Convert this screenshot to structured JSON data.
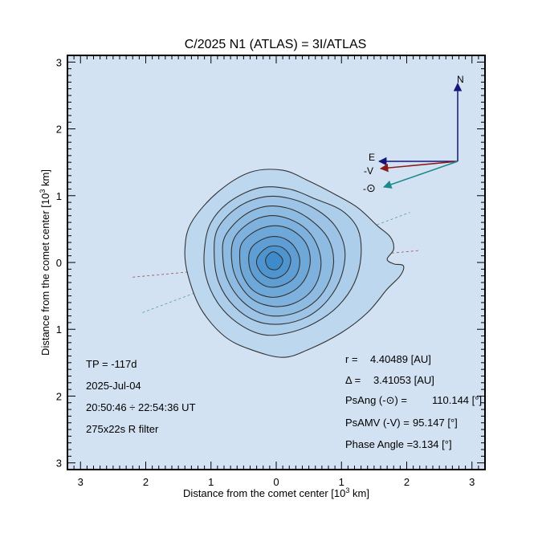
{
  "chart_data": {
    "type": "contour",
    "title": "C/2025 N1 (ATLAS) = 3I/ATLAS",
    "xlabel": "Distance from the comet center [10",
    "xlabel_sup": "3",
    "xlabel_end": " km]",
    "ylabel": "Distance from the comet center [10",
    "ylabel_sup": "3",
    "ylabel_end": " km]",
    "xlim": [
      -3.2,
      3.2
    ],
    "ylim": [
      -3.1,
      3.1
    ],
    "x_ticks": [
      {
        "value": -3,
        "label": "3"
      },
      {
        "value": -2,
        "label": "2"
      },
      {
        "value": -1,
        "label": "1"
      },
      {
        "value": 0,
        "label": "0"
      },
      {
        "value": 1,
        "label": "1"
      },
      {
        "value": 2,
        "label": "2"
      },
      {
        "value": 3,
        "label": "3"
      }
    ],
    "y_ticks": [
      {
        "value": 3,
        "label": "3"
      },
      {
        "value": 2,
        "label": "2"
      },
      {
        "value": 1,
        "label": "1"
      },
      {
        "value": 0,
        "label": "0"
      },
      {
        "value": -1,
        "label": "1"
      },
      {
        "value": -2,
        "label": "2"
      },
      {
        "value": -3,
        "label": "3"
      }
    ],
    "colors": {
      "plot_background": "#d3e2f2",
      "fill_light": "#bdd7ee",
      "fill_dark": "#3e8bcc",
      "contour_line": "#333333",
      "north_east_arrows": "#16167a",
      "velocity_arrow": "#8b1a1a",
      "sun_arrow": "#1b8a8a"
    },
    "contours": [
      {
        "level": 1,
        "points": [
          [
            -1.3,
            0.6
          ],
          [
            -0.9,
            1.05
          ],
          [
            -0.4,
            1.35
          ],
          [
            0.1,
            1.38
          ],
          [
            0.5,
            1.22
          ],
          [
            0.9,
            1.02
          ],
          [
            1.25,
            0.82
          ],
          [
            1.55,
            0.55
          ],
          [
            1.75,
            0.38
          ],
          [
            1.8,
            0.2
          ],
          [
            1.7,
            0.05
          ],
          [
            1.8,
            -0.02
          ],
          [
            1.95,
            -0.05
          ],
          [
            1.9,
            -0.2
          ],
          [
            1.7,
            -0.4
          ],
          [
            1.4,
            -0.75
          ],
          [
            1.0,
            -1.05
          ],
          [
            0.5,
            -1.3
          ],
          [
            0.1,
            -1.42
          ],
          [
            -0.4,
            -1.3
          ],
          [
            -0.8,
            -1.1
          ],
          [
            -1.15,
            -0.7
          ],
          [
            -1.35,
            -0.2
          ],
          [
            -1.4,
            0.2
          ]
        ]
      },
      {
        "level": 2,
        "points": [
          [
            -1.0,
            0.6
          ],
          [
            -0.7,
            0.92
          ],
          [
            -0.25,
            1.12
          ],
          [
            0.2,
            1.1
          ],
          [
            0.6,
            0.95
          ],
          [
            1.0,
            0.78
          ],
          [
            1.25,
            0.5
          ],
          [
            1.3,
            0.1
          ],
          [
            1.2,
            -0.3
          ],
          [
            0.95,
            -0.65
          ],
          [
            0.6,
            -0.9
          ],
          [
            0.2,
            -1.05
          ],
          [
            -0.2,
            -1.08
          ],
          [
            -0.6,
            -0.9
          ],
          [
            -0.9,
            -0.6
          ],
          [
            -1.08,
            -0.2
          ],
          [
            -1.1,
            0.2
          ]
        ]
      },
      {
        "level": 3,
        "points": [
          [
            -0.9,
            0.5
          ],
          [
            -0.6,
            0.82
          ],
          [
            -0.2,
            0.98
          ],
          [
            0.2,
            0.96
          ],
          [
            0.6,
            0.8
          ],
          [
            0.9,
            0.55
          ],
          [
            1.05,
            0.2
          ],
          [
            1.0,
            -0.2
          ],
          [
            0.8,
            -0.55
          ],
          [
            0.5,
            -0.8
          ],
          [
            0.1,
            -0.92
          ],
          [
            -0.3,
            -0.88
          ],
          [
            -0.65,
            -0.65
          ],
          [
            -0.88,
            -0.3
          ],
          [
            -0.95,
            0.1
          ]
        ]
      },
      {
        "level": 4,
        "points": [
          [
            -0.78,
            0.4
          ],
          [
            -0.5,
            0.7
          ],
          [
            -0.15,
            0.84
          ],
          [
            0.22,
            0.8
          ],
          [
            0.55,
            0.62
          ],
          [
            0.8,
            0.35
          ],
          [
            0.88,
            0.0
          ],
          [
            0.78,
            -0.35
          ],
          [
            0.55,
            -0.62
          ],
          [
            0.2,
            -0.78
          ],
          [
            -0.18,
            -0.78
          ],
          [
            -0.52,
            -0.58
          ],
          [
            -0.75,
            -0.25
          ],
          [
            -0.82,
            0.1
          ]
        ]
      },
      {
        "level": 5,
        "points": [
          [
            -0.65,
            0.35
          ],
          [
            -0.4,
            0.6
          ],
          [
            -0.1,
            0.7
          ],
          [
            0.2,
            0.65
          ],
          [
            0.48,
            0.48
          ],
          [
            0.65,
            0.2
          ],
          [
            0.68,
            -0.1
          ],
          [
            0.56,
            -0.4
          ],
          [
            0.3,
            -0.6
          ],
          [
            -0.02,
            -0.66
          ],
          [
            -0.35,
            -0.56
          ],
          [
            -0.58,
            -0.3
          ],
          [
            -0.68,
            0.0
          ]
        ]
      },
      {
        "level": 6,
        "points": [
          [
            -0.52,
            0.3
          ],
          [
            -0.3,
            0.48
          ],
          [
            -0.02,
            0.55
          ],
          [
            0.25,
            0.48
          ],
          [
            0.46,
            0.28
          ],
          [
            0.52,
            0.0
          ],
          [
            0.42,
            -0.28
          ],
          [
            0.2,
            -0.46
          ],
          [
            -0.08,
            -0.52
          ],
          [
            -0.35,
            -0.42
          ],
          [
            -0.52,
            -0.18
          ],
          [
            -0.56,
            0.08
          ]
        ]
      },
      {
        "level": 7,
        "points": [
          [
            -0.38,
            0.22
          ],
          [
            -0.18,
            0.36
          ],
          [
            0.06,
            0.38
          ],
          [
            0.26,
            0.26
          ],
          [
            0.36,
            0.04
          ],
          [
            0.3,
            -0.2
          ],
          [
            0.1,
            -0.34
          ],
          [
            -0.14,
            -0.36
          ],
          [
            -0.34,
            -0.22
          ],
          [
            -0.42,
            0.0
          ]
        ]
      },
      {
        "level": 8,
        "points": [
          [
            -0.26,
            0.12
          ],
          [
            -0.1,
            0.24
          ],
          [
            0.1,
            0.22
          ],
          [
            0.22,
            0.06
          ],
          [
            0.16,
            -0.14
          ],
          [
            -0.02,
            -0.24
          ],
          [
            -0.2,
            -0.18
          ],
          [
            -0.3,
            -0.02
          ]
        ]
      },
      {
        "level": 9,
        "points": [
          [
            -0.16,
            0.06
          ],
          [
            -0.04,
            0.16
          ],
          [
            0.1,
            0.04
          ],
          [
            0.02,
            -0.1
          ],
          [
            -0.12,
            -0.08
          ]
        ]
      }
    ],
    "guide_lines": [
      {
        "type": "velocity",
        "from": [
          -2.2,
          -0.22
        ],
        "to": [
          2.2,
          0.18
        ]
      },
      {
        "type": "sun",
        "from": [
          -2.05,
          -0.75
        ],
        "to": [
          2.05,
          0.75
        ]
      }
    ],
    "compass": {
      "north_label": "N",
      "east_label": "E",
      "velocity_label": "-V",
      "sun_label_prefix": "-",
      "sun_symbol": "⊙"
    },
    "left_annotations": [
      "TP = -117d",
      "2025-Jul-04",
      "20:50:46 ÷ 22:54:36 UT",
      "275x22s R filter"
    ],
    "right_annotations": [
      {
        "label": "r =",
        "value": "4.40489 [AU]"
      },
      {
        "label": "Δ =",
        "value": "3.41053 [AU]"
      },
      {
        "label": "PsAng (-⊙) =",
        "value": "110.144 [°]"
      },
      {
        "label": "PsAMV (-V) =",
        "value": "95.147 [°]"
      },
      {
        "label": "Phase Angle =",
        "value": "3.134 [°]"
      }
    ]
  }
}
